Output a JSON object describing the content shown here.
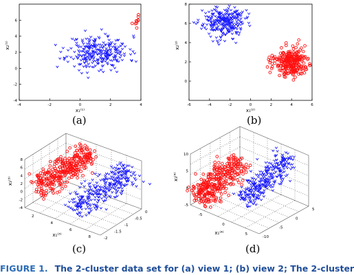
{
  "panels": [
    {
      "label": "(a)",
      "chart_data": {
        "type": "scatter",
        "title": "",
        "xlabel": "x₁⁽¹⁾",
        "ylabel": "x₂⁽¹⁾",
        "xlim": [
          -4,
          4
        ],
        "ylim": [
          -4,
          8
        ],
        "xticks": [
          "-4",
          "-2",
          "0",
          "2",
          "4"
        ],
        "yticks": [
          "-4",
          "-2",
          "0",
          "2",
          "4",
          "6"
        ],
        "grid": false,
        "series": [
          {
            "marker": "triangle",
            "color": "#1a1aff",
            "center": [
              1.2,
              2.0
            ],
            "spread": [
              1.0,
              1.05
            ],
            "count": 300
          },
          {
            "marker": "circle",
            "color": "#ff1010",
            "center": [
              5.0,
              6.0
            ],
            "spread": [
              0.6,
              0.55
            ],
            "count": 260
          }
        ]
      }
    },
    {
      "label": "(b)",
      "chart_data": {
        "type": "scatter",
        "title": "",
        "xlabel": "x₁⁽²⁾",
        "ylabel": "x₂⁽²⁾",
        "xlim": [
          -6,
          6
        ],
        "ylim": [
          -2,
          8
        ],
        "xticks": [
          "-6",
          "-4",
          "-2",
          "0",
          "2",
          "4",
          "6"
        ],
        "yticks": [
          "0",
          "2",
          "4",
          "6",
          "8"
        ],
        "grid": false,
        "series": [
          {
            "marker": "triangle",
            "color": "#1a1aff",
            "center": [
              -2.6,
              6.2
            ],
            "spread": [
              1.0,
              0.8
            ],
            "count": 300
          },
          {
            "marker": "circle",
            "color": "#ff1010",
            "center": [
              3.8,
              1.9
            ],
            "spread": [
              0.85,
              0.75
            ],
            "count": 260
          }
        ]
      }
    },
    {
      "label": "(c)",
      "chart_data": {
        "type": "scatter",
        "title": "",
        "xlabel": "x₁⁽³⁾",
        "ylabel": "x₃⁽³⁾",
        "zticks_left": [
          "-4",
          "-2",
          "0",
          "2",
          "4",
          "6",
          "8"
        ],
        "xticks": [
          "2",
          "4",
          "6",
          "8"
        ],
        "yticks": [
          "-2",
          "-1.5",
          "-1",
          "-0.5",
          "0"
        ],
        "grid": true,
        "series": [
          {
            "marker": "circle",
            "color": "#ff1010",
            "count": 320
          },
          {
            "marker": "triangle",
            "color": "#1a1aff",
            "count": 320
          }
        ]
      }
    },
    {
      "label": "(d)",
      "chart_data": {
        "type": "scatter",
        "title": "",
        "xlabel": "x₁⁽⁴⁾",
        "ylabel": "x₃⁽⁴⁾",
        "zticks_left": [
          "-5",
          "0",
          "5",
          "10"
        ],
        "xticks": [
          "-5",
          "0",
          "5"
        ],
        "yticks": [
          "-10",
          "-5",
          "0",
          "5"
        ],
        "grid": true,
        "series": [
          {
            "marker": "circle",
            "color": "#ff1010",
            "count": 320
          },
          {
            "marker": "triangle",
            "color": "#1a1aff",
            "count": 320
          }
        ]
      }
    }
  ],
  "caption": {
    "label": "FIGURE 1.",
    "text": "The 2-cluster data set for (a) view 1; (b) view 2; The 2-cluster"
  }
}
